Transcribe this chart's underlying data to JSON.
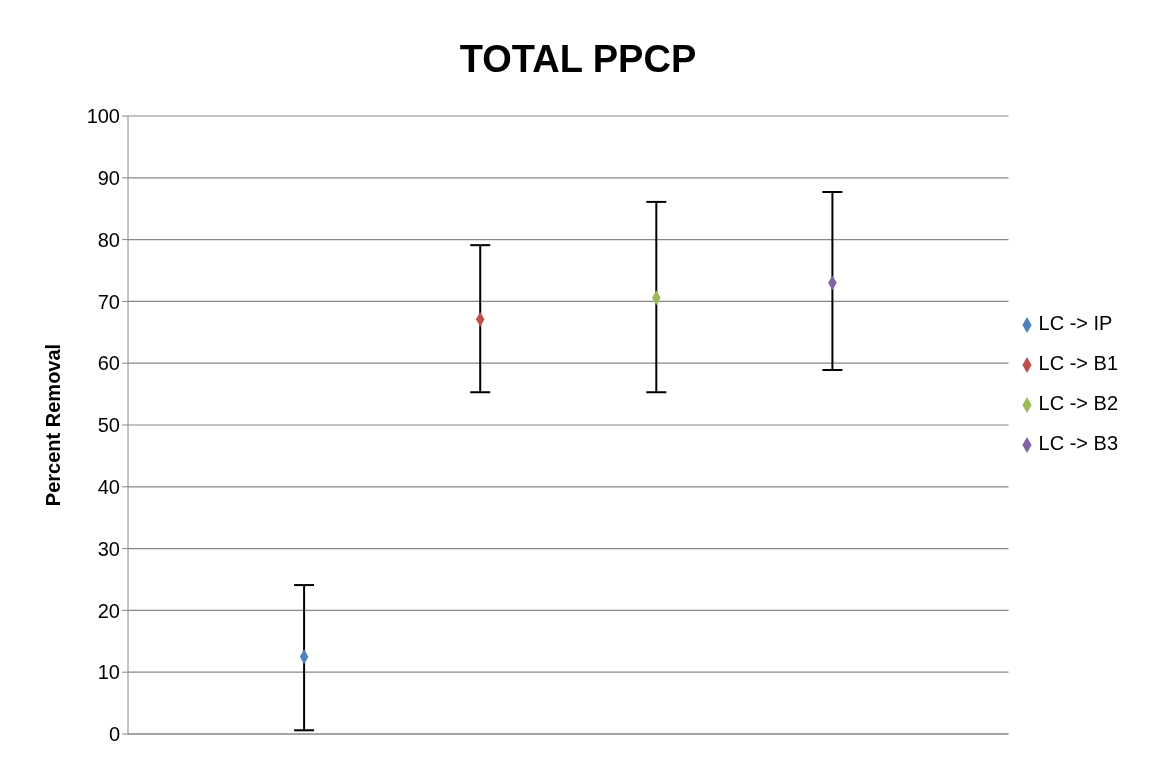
{
  "chart_data": {
    "type": "scatter",
    "title": "TOTAL PPCP",
    "ylabel": "Percent Removal",
    "categories": [
      null,
      null,
      null,
      null
    ],
    "series": [
      {
        "name": "LC -> IP",
        "color": "#4f81bd",
        "values": [
          12.5,
          null,
          null,
          null
        ],
        "errors": [
          [
            0.6,
            24.1
          ],
          null,
          null,
          null
        ]
      },
      {
        "name": "LC -> B1",
        "color": "#c0504d",
        "values": [
          null,
          67.1,
          null,
          null
        ],
        "errors": [
          null,
          [
            55.3,
            79.1
          ],
          null,
          null
        ]
      },
      {
        "name": "LC -> B2",
        "color": "#9bbb59",
        "values": [
          null,
          null,
          70.6,
          null
        ],
        "errors": [
          null,
          null,
          [
            55.3,
            86.1
          ],
          null
        ]
      },
      {
        "name": "LC -> B3",
        "color": "#8064a2",
        "values": [
          null,
          null,
          null,
          73.0
        ],
        "errors": [
          null,
          null,
          null,
          [
            58.9,
            87.7
          ]
        ]
      }
    ],
    "ylim": [
      0,
      100
    ],
    "yticks": [
      0,
      10,
      20,
      30,
      40,
      50,
      60,
      70,
      80,
      90,
      100
    ],
    "grid": "y",
    "legend": "right",
    "marker": "diamond"
  }
}
